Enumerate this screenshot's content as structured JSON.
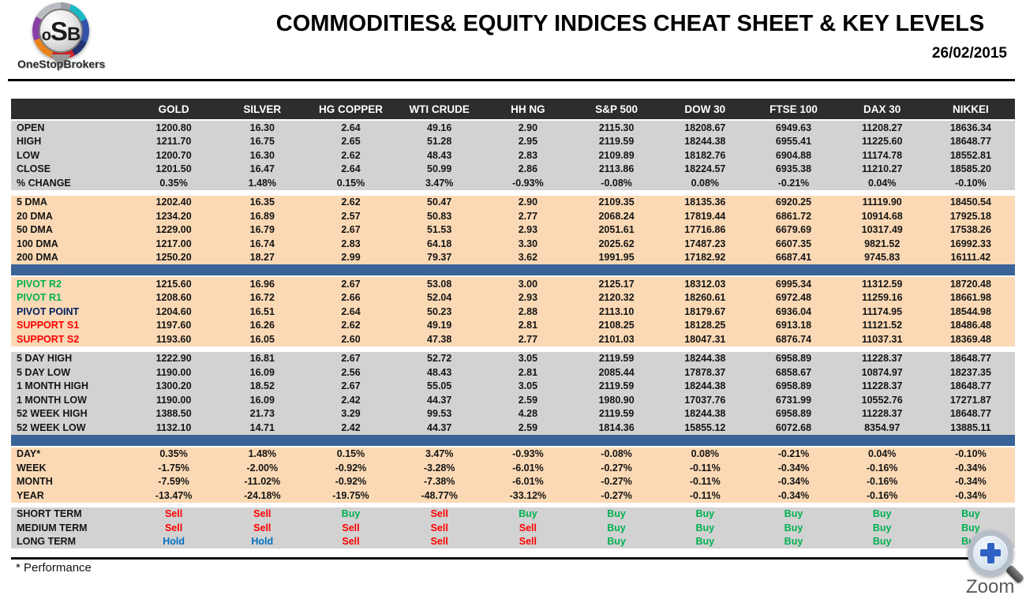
{
  "header": {
    "logo": {
      "letters": [
        "o",
        "S",
        "B"
      ],
      "brand": "OneStopBrokers"
    },
    "title": "COMMODITIES& EQUITY INDICES CHEAT SHEET & KEY LEVELS",
    "date": "26/02/2015"
  },
  "colors": {
    "header_bg": "#2d2d2d",
    "gray": "#d2d2d2",
    "peach": "#fbd9b5",
    "divider_bar": "#3a6397",
    "labels": {
      "green": "#00b050",
      "navy": "#002060",
      "red": "#ff0000"
    },
    "signals": {
      "Buy": "#00b050",
      "Sell": "#ff0000",
      "Hold": "#0070c0"
    }
  },
  "table": {
    "columns": [
      "GOLD",
      "SILVER",
      "HG COPPER",
      "WTI CRUDE",
      "HH NG",
      "S&P 500",
      "DOW 30",
      "FTSE 100",
      "DAX 30",
      "NIKKEI"
    ],
    "sections": [
      {
        "id": "ohlc",
        "bg": "gray",
        "rows": [
          {
            "label": "OPEN",
            "values": [
              "1200.80",
              "16.30",
              "2.64",
              "49.16",
              "2.90",
              "2115.30",
              "18208.67",
              "6949.63",
              "11208.27",
              "18636.34"
            ]
          },
          {
            "label": "HIGH",
            "values": [
              "1211.70",
              "16.75",
              "2.65",
              "51.28",
              "2.95",
              "2119.59",
              "18244.38",
              "6955.41",
              "11225.60",
              "18648.77"
            ]
          },
          {
            "label": "LOW",
            "values": [
              "1200.70",
              "16.30",
              "2.62",
              "48.43",
              "2.83",
              "2109.89",
              "18182.76",
              "6904.88",
              "11174.78",
              "18552.81"
            ]
          },
          {
            "label": "CLOSE",
            "values": [
              "1201.50",
              "16.47",
              "2.64",
              "50.99",
              "2.86",
              "2113.86",
              "18224.57",
              "6935.38",
              "11210.27",
              "18585.20"
            ]
          },
          {
            "label": "% CHANGE",
            "values": [
              "0.35%",
              "1.48%",
              "0.15%",
              "3.47%",
              "-0.93%",
              "-0.08%",
              "0.08%",
              "-0.21%",
              "0.04%",
              "-0.10%"
            ]
          }
        ]
      },
      {
        "kind": "gap"
      },
      {
        "id": "dma",
        "bg": "peach",
        "rows": [
          {
            "label": "5 DMA",
            "values": [
              "1202.40",
              "16.35",
              "2.62",
              "50.47",
              "2.90",
              "2109.35",
              "18135.36",
              "6920.25",
              "11119.90",
              "18450.54"
            ]
          },
          {
            "label": "20 DMA",
            "values": [
              "1234.20",
              "16.89",
              "2.57",
              "50.83",
              "2.77",
              "2068.24",
              "17819.44",
              "6861.72",
              "10914.68",
              "17925.18"
            ]
          },
          {
            "label": "50 DMA",
            "values": [
              "1229.00",
              "16.79",
              "2.67",
              "51.53",
              "2.93",
              "2051.61",
              "17716.86",
              "6679.69",
              "10317.49",
              "17538.26"
            ]
          },
          {
            "label": "100 DMA",
            "values": [
              "1217.00",
              "16.74",
              "2.83",
              "64.18",
              "3.30",
              "2025.62",
              "17487.23",
              "6607.35",
              "9821.52",
              "16992.33"
            ]
          },
          {
            "label": "200 DMA",
            "values": [
              "1250.20",
              "18.27",
              "2.99",
              "79.37",
              "3.62",
              "1991.95",
              "17182.92",
              "6687.41",
              "9745.83",
              "16111.42"
            ]
          }
        ]
      },
      {
        "kind": "bar"
      },
      {
        "id": "pivots",
        "bg": "peach",
        "rows": [
          {
            "label": "PIVOT R2",
            "label_color": "green",
            "values": [
              "1215.60",
              "16.96",
              "2.67",
              "53.08",
              "3.00",
              "2125.17",
              "18312.03",
              "6995.34",
              "11312.59",
              "18720.48"
            ]
          },
          {
            "label": "PIVOT R1",
            "label_color": "green",
            "values": [
              "1208.60",
              "16.72",
              "2.66",
              "52.04",
              "2.93",
              "2120.32",
              "18260.61",
              "6972.48",
              "11259.16",
              "18661.98"
            ]
          },
          {
            "label": "PIVOT POINT",
            "label_color": "navy",
            "values": [
              "1204.60",
              "16.51",
              "2.64",
              "50.23",
              "2.88",
              "2113.10",
              "18179.67",
              "6936.04",
              "11174.95",
              "18544.98"
            ]
          },
          {
            "label": "SUPPORT S1",
            "label_color": "red",
            "values": [
              "1197.60",
              "16.26",
              "2.62",
              "49.19",
              "2.81",
              "2108.25",
              "18128.25",
              "6913.18",
              "11121.52",
              "18486.48"
            ]
          },
          {
            "label": "SUPPORT S2",
            "label_color": "red",
            "values": [
              "1193.60",
              "16.05",
              "2.60",
              "47.38",
              "2.77",
              "2101.03",
              "18047.31",
              "6876.74",
              "11037.31",
              "18369.48"
            ]
          }
        ]
      },
      {
        "kind": "gap"
      },
      {
        "id": "ranges",
        "bg": "gray",
        "rows": [
          {
            "label": "5 DAY HIGH",
            "values": [
              "1222.90",
              "16.81",
              "2.67",
              "52.72",
              "3.05",
              "2119.59",
              "18244.38",
              "6958.89",
              "11228.37",
              "18648.77"
            ]
          },
          {
            "label": "5 DAY LOW",
            "values": [
              "1190.00",
              "16.09",
              "2.56",
              "48.43",
              "2.81",
              "2085.44",
              "17878.37",
              "6858.67",
              "10874.97",
              "18237.35"
            ]
          },
          {
            "label": "1 MONTH HIGH",
            "values": [
              "1300.20",
              "18.52",
              "2.67",
              "55.05",
              "3.05",
              "2119.59",
              "18244.38",
              "6958.89",
              "11228.37",
              "18648.77"
            ]
          },
          {
            "label": "1 MONTH LOW",
            "values": [
              "1190.00",
              "16.09",
              "2.42",
              "44.37",
              "2.59",
              "1980.90",
              "17037.76",
              "6731.99",
              "10552.76",
              "17271.87"
            ]
          },
          {
            "label": "52 WEEK HIGH",
            "values": [
              "1388.50",
              "21.73",
              "3.29",
              "99.53",
              "4.28",
              "2119.59",
              "18244.38",
              "6958.89",
              "11228.37",
              "18648.77"
            ]
          },
          {
            "label": "52 WEEK LOW",
            "values": [
              "1132.10",
              "14.71",
              "2.42",
              "44.37",
              "2.59",
              "1814.36",
              "15855.12",
              "6072.68",
              "8354.97",
              "13885.11"
            ]
          }
        ]
      },
      {
        "kind": "bar"
      },
      {
        "id": "performance",
        "bg": "peach",
        "rows": [
          {
            "label": "DAY*",
            "values": [
              "0.35%",
              "1.48%",
              "0.15%",
              "3.47%",
              "-0.93%",
              "-0.08%",
              "0.08%",
              "-0.21%",
              "0.04%",
              "-0.10%"
            ]
          },
          {
            "label": "WEEK",
            "values": [
              "-1.75%",
              "-2.00%",
              "-0.92%",
              "-3.28%",
              "-6.01%",
              "-0.27%",
              "-0.11%",
              "-0.34%",
              "-0.16%",
              "-0.34%"
            ]
          },
          {
            "label": "MONTH",
            "values": [
              "-7.59%",
              "-11.02%",
              "-0.92%",
              "-7.38%",
              "-6.01%",
              "-0.27%",
              "-0.11%",
              "-0.34%",
              "-0.16%",
              "-0.34%"
            ]
          },
          {
            "label": "YEAR",
            "values": [
              "-13.47%",
              "-24.18%",
              "-19.75%",
              "-48.77%",
              "-33.12%",
              "-0.27%",
              "-0.11%",
              "-0.34%",
              "-0.16%",
              "-0.34%"
            ]
          }
        ]
      },
      {
        "kind": "gap-sm"
      },
      {
        "id": "signals",
        "bg": "gray",
        "signal": true,
        "rows": [
          {
            "label": "SHORT TERM",
            "values": [
              "Sell",
              "Sell",
              "Buy",
              "Sell",
              "Buy",
              "Buy",
              "Buy",
              "Buy",
              "Buy",
              "Buy"
            ]
          },
          {
            "label": "MEDIUM TERM",
            "values": [
              "Sell",
              "Sell",
              "Sell",
              "Sell",
              "Sell",
              "Buy",
              "Buy",
              "Buy",
              "Buy",
              "Buy"
            ]
          },
          {
            "label": "LONG TERM",
            "values": [
              "Hold",
              "Hold",
              "Sell",
              "Sell",
              "Sell",
              "Buy",
              "Buy",
              "Buy",
              "Buy",
              "Buy"
            ]
          }
        ]
      }
    ]
  },
  "footer": {
    "note": "* Performance",
    "zoom_label": "Zoom"
  }
}
